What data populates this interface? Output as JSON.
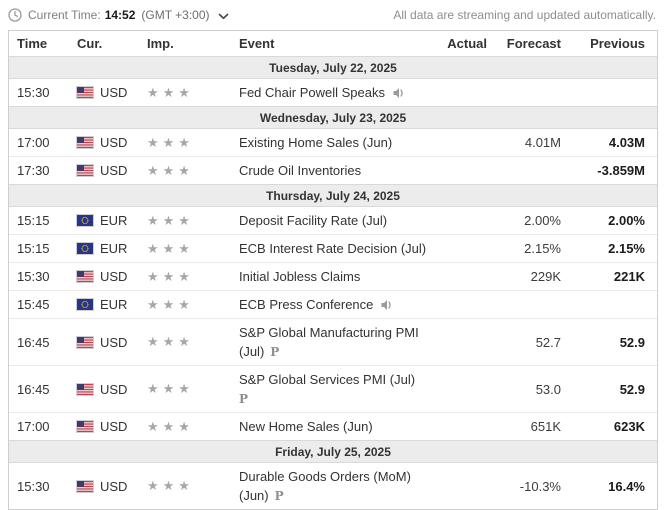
{
  "topbar": {
    "current_time_label": "Current Time:",
    "current_time": "14:52",
    "timezone": "(GMT +3:00)",
    "streaming_note": "All data are streaming and updated automatically."
  },
  "table": {
    "headers": {
      "time": "Time",
      "cur": "Cur.",
      "imp": "Imp.",
      "event": "Event",
      "actual": "Actual",
      "forecast": "Forecast",
      "previous": "Previous"
    },
    "colors": {
      "day_row_bg": "#ececec",
      "star_gray": "#a7a7a7",
      "us_flag_red": "#b22234",
      "us_flag_blue": "#3c3b6e",
      "eu_flag_blue": "#26348b",
      "eu_star_yellow": "#ffd617"
    },
    "sections": [
      {
        "date": "Tuesday, July 22, 2025",
        "events": [
          {
            "time": "15:30",
            "currency": "USD",
            "flag": "us",
            "stars": 3,
            "event_lines": [
              "Fed Chair Powell Speaks"
            ],
            "speaker": true,
            "preliminary": false,
            "preliminary_line": 0,
            "actual": "",
            "forecast": "",
            "previous": ""
          }
        ]
      },
      {
        "date": "Wednesday, July 23, 2025",
        "events": [
          {
            "time": "17:00",
            "currency": "USD",
            "flag": "us",
            "stars": 3,
            "event_lines": [
              "Existing Home Sales (Jun)"
            ],
            "speaker": false,
            "preliminary": false,
            "preliminary_line": 0,
            "actual": "",
            "forecast": "4.01M",
            "previous": "4.03M"
          },
          {
            "time": "17:30",
            "currency": "USD",
            "flag": "us",
            "stars": 3,
            "event_lines": [
              "Crude Oil Inventories"
            ],
            "speaker": false,
            "preliminary": false,
            "preliminary_line": 0,
            "actual": "",
            "forecast": "",
            "previous": "-3.859M"
          }
        ]
      },
      {
        "date": "Thursday, July 24, 2025",
        "events": [
          {
            "time": "15:15",
            "currency": "EUR",
            "flag": "eu",
            "stars": 3,
            "event_lines": [
              "Deposit Facility Rate (Jul)"
            ],
            "speaker": false,
            "preliminary": false,
            "preliminary_line": 0,
            "actual": "",
            "forecast": "2.00%",
            "previous": "2.00%"
          },
          {
            "time": "15:15",
            "currency": "EUR",
            "flag": "eu",
            "stars": 3,
            "event_lines": [
              "ECB Interest Rate Decision (Jul)"
            ],
            "speaker": false,
            "preliminary": false,
            "preliminary_line": 0,
            "actual": "",
            "forecast": "2.15%",
            "previous": "2.15%"
          },
          {
            "time": "15:30",
            "currency": "USD",
            "flag": "us",
            "stars": 3,
            "event_lines": [
              "Initial Jobless Claims"
            ],
            "speaker": false,
            "preliminary": false,
            "preliminary_line": 0,
            "actual": "",
            "forecast": "229K",
            "previous": "221K"
          },
          {
            "time": "15:45",
            "currency": "EUR",
            "flag": "eu",
            "stars": 3,
            "event_lines": [
              "ECB Press Conference"
            ],
            "speaker": true,
            "preliminary": false,
            "preliminary_line": 0,
            "actual": "",
            "forecast": "",
            "previous": ""
          },
          {
            "time": "16:45",
            "currency": "USD",
            "flag": "us",
            "stars": 3,
            "event_lines": [
              "S&P Global Manufacturing PMI",
              "(Jul)"
            ],
            "speaker": false,
            "preliminary": true,
            "preliminary_line": 2,
            "actual": "",
            "forecast": "52.7",
            "previous": "52.9"
          },
          {
            "time": "16:45",
            "currency": "USD",
            "flag": "us",
            "stars": 3,
            "event_lines": [
              "S&P Global Services PMI (Jul)",
              ""
            ],
            "speaker": false,
            "preliminary": true,
            "preliminary_line": 2,
            "actual": "",
            "forecast": "53.0",
            "previous": "52.9"
          },
          {
            "time": "17:00",
            "currency": "USD",
            "flag": "us",
            "stars": 3,
            "event_lines": [
              "New Home Sales (Jun)"
            ],
            "speaker": false,
            "preliminary": false,
            "preliminary_line": 0,
            "actual": "",
            "forecast": "651K",
            "previous": "623K"
          }
        ]
      },
      {
        "date": "Friday, July 25, 2025",
        "events": [
          {
            "time": "15:30",
            "currency": "USD",
            "flag": "us",
            "stars": 3,
            "event_lines": [
              "Durable Goods Orders (MoM)",
              "(Jun)"
            ],
            "speaker": false,
            "preliminary": true,
            "preliminary_line": 2,
            "actual": "",
            "forecast": "-10.3%",
            "previous": "16.4%"
          }
        ]
      }
    ]
  }
}
